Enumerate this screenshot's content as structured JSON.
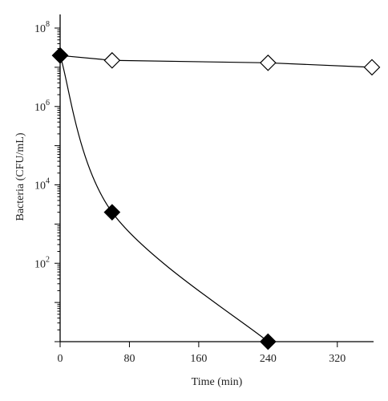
{
  "chart_data": {
    "type": "line",
    "xlabel": "Time (min)",
    "ylabel": "Bacteria (CFU/mL)",
    "xlim": [
      0,
      360
    ],
    "x_ticks": [
      0,
      80,
      160,
      240,
      320
    ],
    "y_scale": "log",
    "ylim": [
      1,
      100000000
    ],
    "y_ticks": [
      {
        "base": "10",
        "exp": "2",
        "value": 100
      },
      {
        "base": "10",
        "exp": "4",
        "value": 10000
      },
      {
        "base": "10",
        "exp": "6",
        "value": 1000000
      },
      {
        "base": "10",
        "exp": "8",
        "value": 100000000
      }
    ],
    "grid": false,
    "series": [
      {
        "marker": "open-diamond",
        "color": "#000000",
        "x": [
          0,
          60,
          240,
          360
        ],
        "y": [
          20000000,
          15000000,
          13000000,
          10000000
        ]
      },
      {
        "marker": "filled-diamond",
        "color": "#000000",
        "x": [
          0,
          60,
          240
        ],
        "y": [
          20000000,
          2000,
          1
        ]
      }
    ]
  }
}
